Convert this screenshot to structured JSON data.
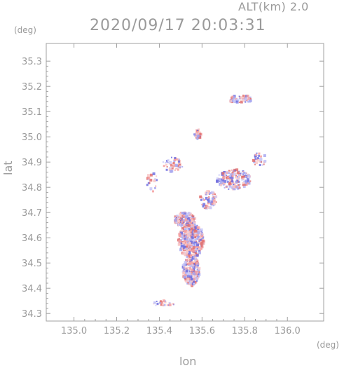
{
  "header": {
    "alt_label": "ALT(km) 2.0",
    "timestamp": "2020/09/17 20:03:31"
  },
  "chart_data": {
    "type": "scatter",
    "title": "2020/09/17 20:03:31",
    "subtitle": "ALT(km) 2.0",
    "xlabel": "lon",
    "ylabel": "lat",
    "xunit": "(deg)",
    "yunit": "(deg)",
    "xlim": [
      134.87,
      136.17
    ],
    "ylim": [
      34.27,
      35.37
    ],
    "xticks": [
      "135.0",
      "135.2",
      "135.4",
      "135.6",
      "135.8",
      "136.0"
    ],
    "xtick_values": [
      135.0,
      135.2,
      135.4,
      135.6,
      135.8,
      136.0
    ],
    "yticks": [
      "34.3",
      "34.4",
      "34.5",
      "34.6",
      "34.7",
      "34.8",
      "34.9",
      "35.0",
      "35.1",
      "35.2",
      "35.3"
    ],
    "ytick_values": [
      34.3,
      34.4,
      34.5,
      34.6,
      34.7,
      34.8,
      34.9,
      35.0,
      35.1,
      35.2,
      35.3
    ],
    "grid": false,
    "colors": {
      "positive": "#f4a0a0",
      "negative": "#a8a8f0",
      "axis": "#a0a0a0",
      "text": "#9a9a9a"
    },
    "clusters": [
      {
        "lon": 135.55,
        "lat": 34.59,
        "rx": 0.06,
        "ry": 0.07,
        "n": 420
      },
      {
        "lon": 135.55,
        "lat": 34.47,
        "rx": 0.04,
        "ry": 0.06,
        "n": 220
      },
      {
        "lon": 135.52,
        "lat": 34.67,
        "rx": 0.05,
        "ry": 0.03,
        "n": 140
      },
      {
        "lon": 135.75,
        "lat": 34.83,
        "rx": 0.08,
        "ry": 0.04,
        "n": 180
      },
      {
        "lon": 135.78,
        "lat": 35.15,
        "rx": 0.06,
        "ry": 0.015,
        "n": 60
      },
      {
        "lon": 135.58,
        "lat": 35.01,
        "rx": 0.015,
        "ry": 0.02,
        "n": 30
      },
      {
        "lon": 135.46,
        "lat": 34.89,
        "rx": 0.05,
        "ry": 0.03,
        "n": 50
      },
      {
        "lon": 135.42,
        "lat": 34.34,
        "rx": 0.06,
        "ry": 0.01,
        "n": 25
      },
      {
        "lon": 135.37,
        "lat": 34.82,
        "rx": 0.03,
        "ry": 0.04,
        "n": 20
      },
      {
        "lon": 135.63,
        "lat": 34.75,
        "rx": 0.04,
        "ry": 0.04,
        "n": 60
      },
      {
        "lon": 135.87,
        "lat": 34.91,
        "rx": 0.03,
        "ry": 0.03,
        "n": 30
      }
    ]
  }
}
